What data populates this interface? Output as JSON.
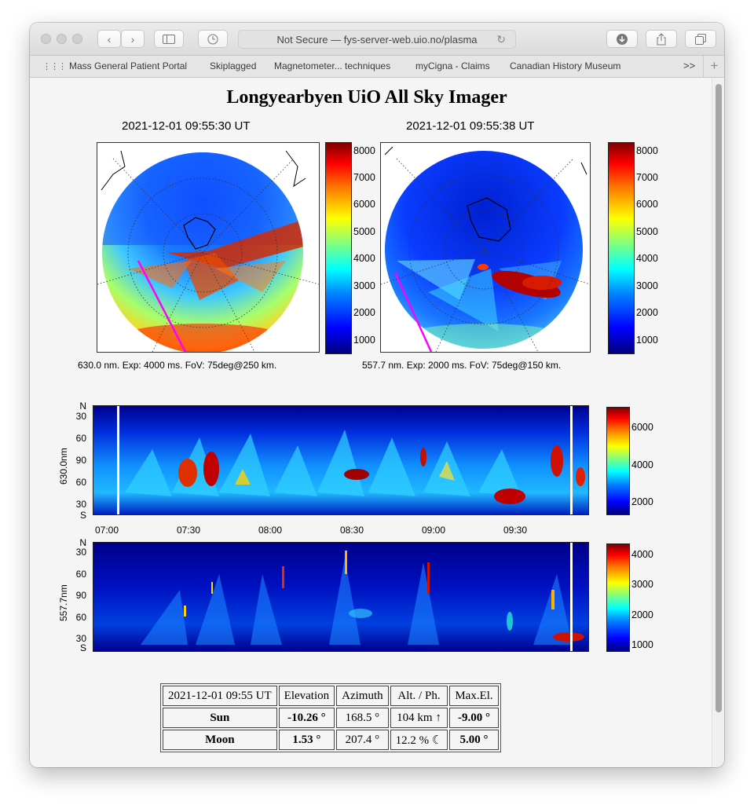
{
  "browser": {
    "address": "Not Secure — fys-server-web.uio.no/plasma",
    "bookmarks": [
      "Mass General Patient Portal",
      "Skiplagged",
      "Magnetometer... techniques",
      "myCigna - Claims",
      "Canadian History Museum"
    ],
    "more": ">>",
    "plus": "+"
  },
  "page": {
    "title": "Longyearbyen UiO All Sky Imager"
  },
  "images": [
    {
      "timestamp": "2021-12-01 09:55:30 UT",
      "caption": "630.0 nm. Exp: 4000 ms. FoV: 75deg@250 km.",
      "colorbar_ticks": [
        "8000",
        "7000",
        "6000",
        "5000",
        "4000",
        "3000",
        "2000",
        "1000"
      ]
    },
    {
      "timestamp": "2021-12-01 09:55:38 UT",
      "caption": "557.7 nm. Exp: 2000 ms. FoV: 75deg@150 km.",
      "colorbar_ticks": [
        "8000",
        "7000",
        "6000",
        "5000",
        "4000",
        "3000",
        "2000",
        "1000"
      ]
    }
  ],
  "keograms": [
    {
      "ylabel": "630.0nm",
      "yticks": [
        "N",
        "30",
        "60",
        "90",
        "60",
        "30",
        "S"
      ],
      "colorbar_ticks": [
        "6000",
        "4000",
        "2000"
      ],
      "xticks": [
        "07:00",
        "07:30",
        "08:00",
        "08:30",
        "09:00",
        "09:30"
      ]
    },
    {
      "ylabel": "557.7nm",
      "yticks": [
        "N",
        "30",
        "60",
        "90",
        "60",
        "30",
        "S"
      ],
      "colorbar_ticks": [
        "4000",
        "3000",
        "2000",
        "1000"
      ]
    }
  ],
  "table": {
    "header": [
      "2021-12-01 09:55 UT",
      "Elevation",
      "Azimuth",
      "Alt. / Ph.",
      "Max.El."
    ],
    "rows": [
      {
        "name": "Sun",
        "elevation": "-10.26 °",
        "azimuth": "168.5 °",
        "alt_ph": "104 km ↑",
        "max_el": "-9.00 °"
      },
      {
        "name": "Moon",
        "elevation": "1.53 °",
        "azimuth": "207.4 °",
        "alt_ph": "12.2 % ☾",
        "max_el": "5.00 °"
      }
    ]
  }
}
